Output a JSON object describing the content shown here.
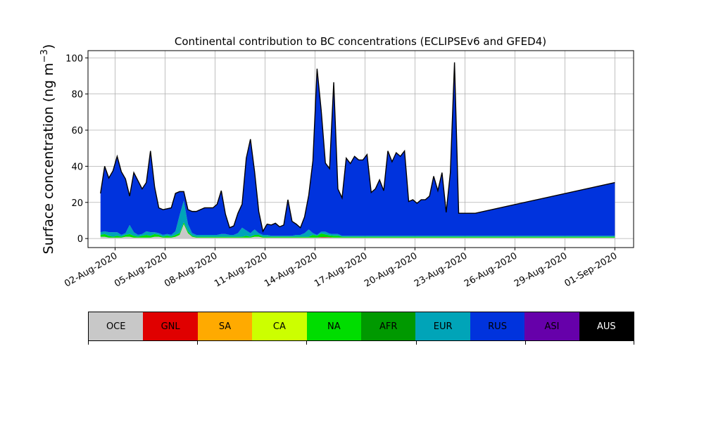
{
  "chart_data": {
    "type": "area",
    "title": "Continental contribution to BC concentrations (ECLIPSEv6 and GFED4)",
    "ylabel_main": "Surface concentration (ng m",
    "ylabel_exp": "−3",
    "ylabel_close": ")",
    "xlabel": "",
    "stacked": true,
    "grid": true,
    "ylim": [
      -5,
      104
    ],
    "xlim": [
      "2020-07-31T09:00",
      "2020-09-02T03:00"
    ],
    "yticks": [
      0,
      20,
      40,
      60,
      80,
      100
    ],
    "xticks": [
      "2020-08-02",
      "2020-08-05",
      "2020-08-08",
      "2020-08-11",
      "2020-08-14",
      "2020-08-17",
      "2020-08-20",
      "2020-08-23",
      "2020-08-26",
      "2020-08-29",
      "2020-09-01"
    ],
    "xtick_labels": [
      "02-Aug-2020",
      "05-Aug-2020",
      "08-Aug-2020",
      "11-Aug-2020",
      "14-Aug-2020",
      "17-Aug-2020",
      "20-Aug-2020",
      "23-Aug-2020",
      "26-Aug-2020",
      "29-Aug-2020",
      "01-Sep-2020"
    ],
    "x": [
      "2020-08-01T03:00",
      "2020-08-01T09:00",
      "2020-08-01T15:00",
      "2020-08-01T21:00",
      "2020-08-02T03:00",
      "2020-08-02T09:00",
      "2020-08-02T15:00",
      "2020-08-02T21:00",
      "2020-08-03T03:00",
      "2020-08-03T09:00",
      "2020-08-03T15:00",
      "2020-08-03T21:00",
      "2020-08-04T03:00",
      "2020-08-04T09:00",
      "2020-08-04T15:00",
      "2020-08-04T21:00",
      "2020-08-05T03:00",
      "2020-08-05T09:00",
      "2020-08-05T15:00",
      "2020-08-05T21:00",
      "2020-08-06T03:00",
      "2020-08-06T09:00",
      "2020-08-06T15:00",
      "2020-08-06T21:00",
      "2020-08-07T03:00",
      "2020-08-07T09:00",
      "2020-08-07T15:00",
      "2020-08-07T21:00",
      "2020-08-08T03:00",
      "2020-08-08T09:00",
      "2020-08-08T15:00",
      "2020-08-08T21:00",
      "2020-08-09T03:00",
      "2020-08-09T09:00",
      "2020-08-09T15:00",
      "2020-08-09T21:00",
      "2020-08-10T03:00",
      "2020-08-10T09:00",
      "2020-08-10T15:00",
      "2020-08-10T21:00",
      "2020-08-11T03:00",
      "2020-08-11T09:00",
      "2020-08-11T15:00",
      "2020-08-11T21:00",
      "2020-08-12T03:00",
      "2020-08-12T09:00",
      "2020-08-12T15:00",
      "2020-08-12T21:00",
      "2020-08-13T03:00",
      "2020-08-13T09:00",
      "2020-08-13T15:00",
      "2020-08-13T21:00",
      "2020-08-14T03:00",
      "2020-08-14T09:00",
      "2020-08-14T15:00",
      "2020-08-14T21:00",
      "2020-08-15T03:00",
      "2020-08-15T09:00",
      "2020-08-15T15:00",
      "2020-08-15T21:00",
      "2020-08-16T03:00",
      "2020-08-16T09:00",
      "2020-08-16T15:00",
      "2020-08-16T21:00",
      "2020-08-17T03:00",
      "2020-08-17T09:00",
      "2020-08-17T15:00",
      "2020-08-17T21:00",
      "2020-08-18T03:00",
      "2020-08-18T09:00",
      "2020-08-18T15:00",
      "2020-08-18T21:00",
      "2020-08-19T03:00",
      "2020-08-19T09:00",
      "2020-08-19T15:00",
      "2020-08-19T21:00",
      "2020-08-20T03:00",
      "2020-08-20T09:00",
      "2020-08-20T15:00",
      "2020-08-20T21:00",
      "2020-08-21T03:00",
      "2020-08-21T09:00",
      "2020-08-21T15:00",
      "2020-08-21T21:00",
      "2020-08-22T03:00",
      "2020-08-22T09:00",
      "2020-08-22T15:00",
      "2020-08-22T21:00",
      "2020-08-23T03:00",
      "2020-08-23T09:00",
      "2020-08-23T15:00",
      "2020-09-01T00:00"
    ],
    "series": [
      {
        "name": "OCE",
        "color": "#c8c8c8",
        "values": [
          1,
          1,
          0.5,
          0.5,
          0.5,
          0.5,
          1,
          1,
          0.5,
          0.5,
          0.5,
          0.5,
          0.5,
          1,
          1,
          0.5,
          0.5,
          0.5,
          1,
          2,
          8,
          3,
          1,
          0.5,
          0.5,
          0.5,
          0.5,
          0.5,
          0.5,
          0.5,
          0.5,
          0.5,
          0.5,
          0.5,
          0.5,
          0.5,
          0.5,
          1,
          1,
          0.5,
          0.5,
          0.5,
          0.5,
          0.5,
          0.5,
          0.5,
          0.5,
          0.5,
          0.5,
          0.5,
          0.5,
          0.5,
          0.5,
          0.5,
          0.5,
          0.5,
          0.5,
          0.5,
          0.5,
          0.5,
          0.5,
          0.5,
          0.5,
          0.5,
          0.5,
          0.5,
          0.5,
          0.5,
          0.5,
          0.5,
          0.5,
          0.5,
          0.5,
          0.5,
          0.5,
          0.5,
          0.5,
          0.5,
          0.5,
          0.5,
          0.5,
          0.5,
          0.5,
          0.5,
          0.5,
          0.5,
          0.5,
          0.5,
          0.5,
          0.5,
          0.5,
          0.5
        ]
      },
      {
        "name": "GNL",
        "color": "#e00000",
        "values": [
          0,
          0,
          0,
          0,
          0,
          0,
          0,
          0,
          0,
          0,
          0,
          0,
          0,
          0,
          0,
          0,
          0,
          0,
          0,
          0,
          0,
          0,
          0,
          0,
          0,
          0,
          0,
          0,
          0,
          0,
          0,
          0,
          0,
          0,
          0,
          0,
          0,
          0,
          0,
          0,
          0,
          0,
          0,
          0,
          0,
          0,
          0,
          0,
          0,
          0,
          0,
          0,
          0,
          0.3,
          0.3,
          0.2,
          0,
          0,
          0,
          0,
          0,
          0,
          0,
          0,
          0,
          0,
          0,
          0,
          0,
          0,
          0,
          0,
          0,
          0,
          0,
          0,
          0,
          0,
          0,
          0,
          0,
          0,
          0,
          0,
          0,
          0,
          0,
          0,
          0,
          0,
          0,
          0
        ]
      },
      {
        "name": "SA",
        "color": "#ffaa00",
        "values": [
          0,
          0,
          0,
          0,
          0,
          0,
          0,
          0,
          0,
          0,
          0,
          0,
          0,
          0,
          0,
          0,
          0,
          0,
          0,
          0,
          0,
          0,
          0,
          0,
          0,
          0,
          0,
          0,
          0,
          0,
          0,
          0,
          0,
          0,
          0,
          0,
          0,
          0,
          0,
          0,
          0,
          0,
          0,
          0,
          0,
          0,
          0,
          0,
          0,
          0,
          0,
          0,
          0,
          0,
          0,
          0,
          0,
          0,
          0,
          0,
          0,
          0,
          0,
          0,
          0,
          0,
          0,
          0,
          0,
          0,
          0,
          0,
          0,
          0,
          0,
          0,
          0,
          0,
          0,
          0,
          0,
          0,
          0,
          0,
          0,
          0,
          0,
          0,
          0,
          0,
          0,
          0
        ]
      },
      {
        "name": "CA",
        "color": "#ccff00",
        "values": [
          0,
          0,
          0,
          0,
          0,
          0,
          0,
          0,
          0,
          0,
          0,
          0,
          0,
          0,
          0,
          0,
          0,
          0,
          0,
          0,
          0,
          0,
          0,
          0,
          0,
          0,
          0,
          0,
          0,
          0,
          0,
          0,
          0,
          0,
          0,
          0,
          0,
          0,
          0,
          0,
          0,
          0,
          0,
          0,
          0,
          0,
          0,
          0,
          0,
          0,
          0,
          0,
          0,
          0,
          0,
          0,
          0,
          0,
          0,
          0,
          0,
          0,
          0,
          0,
          0,
          0,
          0,
          0,
          0,
          0,
          0,
          0,
          0,
          0,
          0,
          0,
          0,
          0,
          0,
          0,
          0,
          0,
          0,
          0,
          0,
          0,
          0,
          0,
          0,
          0,
          0,
          0
        ]
      },
      {
        "name": "NA",
        "color": "#00dd00",
        "values": [
          1,
          1.5,
          1,
          0.5,
          1,
          0.5,
          1,
          1.5,
          1,
          0.5,
          1,
          1.5,
          1,
          1.5,
          1,
          0.5,
          1,
          0.5,
          1,
          1,
          1,
          1,
          0.5,
          0.5,
          0.5,
          0.5,
          0.5,
          0.5,
          0.5,
          0.5,
          0.5,
          0.5,
          0.5,
          0.5,
          0.5,
          1,
          0.5,
          1,
          1,
          0.5,
          0.5,
          0.5,
          0.5,
          0.5,
          0.5,
          0.5,
          0.5,
          0.5,
          0.5,
          0.5,
          0.5,
          1.5,
          1,
          2,
          1.5,
          1,
          1,
          1,
          0.5,
          0.5,
          0.5,
          0.5,
          0.5,
          0.5,
          0.5,
          0.5,
          0.5,
          0.5,
          0.5,
          0.5,
          0.5,
          0.5,
          0.5,
          0.5,
          0.5,
          0.5,
          0.5,
          0.5,
          0.5,
          0.5,
          0.5,
          0.5,
          0.5,
          0.5,
          0.5,
          0.5,
          0.5,
          0.5,
          0.5,
          0.5,
          0.5,
          0.5
        ]
      },
      {
        "name": "AFR",
        "color": "#009900",
        "values": [
          0,
          0,
          0,
          0,
          0,
          0,
          0,
          0,
          0,
          0,
          0,
          0,
          0,
          0,
          0,
          0,
          0,
          0,
          0,
          0,
          0,
          0,
          0,
          0,
          0,
          0,
          0,
          0,
          0,
          0,
          0,
          0,
          0,
          0,
          0,
          0,
          0,
          0,
          0,
          0,
          0,
          0,
          0,
          0,
          0,
          0,
          0,
          0,
          0,
          0,
          0,
          0,
          0,
          0,
          0,
          0,
          0,
          0,
          0,
          0,
          0,
          0,
          0,
          0,
          0,
          0,
          0,
          0,
          0,
          0,
          0,
          0,
          0,
          0,
          0,
          0,
          0,
          0,
          0,
          0,
          0,
          0,
          0,
          0,
          0,
          0,
          0,
          0,
          0,
          0,
          0,
          0
        ]
      },
      {
        "name": "EUR",
        "color": "#00a4b8",
        "values": [
          1.5,
          1.5,
          2,
          2.5,
          2,
          1,
          1,
          5,
          2,
          1,
          1,
          2,
          2,
          1,
          1,
          1,
          1,
          1,
          2,
          10,
          12,
          4,
          1.5,
          1,
          1,
          1,
          1,
          1,
          1,
          1.5,
          1.5,
          1,
          1,
          2,
          5,
          3,
          2,
          3,
          1,
          1,
          1,
          0.5,
          0.5,
          0.5,
          0.5,
          0.5,
          0.5,
          1,
          1,
          2,
          4,
          1,
          0.5,
          1,
          1.5,
          1,
          1,
          1,
          0.5,
          0.5,
          0.5,
          0.5,
          0.5,
          0.5,
          0.5,
          0.5,
          0.5,
          0.5,
          0.5,
          0.5,
          0.5,
          0.5,
          0.5,
          0.5,
          0.5,
          0.5,
          0.5,
          0.5,
          0.5,
          0.5,
          0.5,
          0.5,
          0.5,
          0.5,
          0.5,
          0.5,
          0.5,
          0.5,
          0.5,
          0.5,
          0.5,
          0.5
        ]
      },
      {
        "name": "RUS",
        "color": "#0033dd",
        "values": [
          21.5,
          36,
          30,
          34,
          42,
          35,
          30,
          16,
          33,
          30,
          25,
          27,
          45,
          25,
          14,
          14,
          14,
          15,
          21,
          13,
          5,
          8,
          12,
          13,
          14,
          15,
          15,
          15,
          17,
          24,
          11,
          4,
          5,
          11,
          13,
          40,
          52,
          32,
          12,
          2,
          6,
          6,
          7,
          5,
          6,
          20,
          8,
          6,
          4,
          9,
          19,
          40,
          92,
          67,
          38,
          36,
          84,
          25,
          21,
          43,
          40,
          44,
          42,
          42,
          45,
          24,
          26,
          31,
          25,
          47,
          41,
          46,
          44,
          47,
          19,
          20,
          18,
          20,
          20,
          22,
          33,
          25,
          35,
          13,
          35,
          96,
          12.5,
          12.5,
          12.5,
          12.5,
          12.5,
          29.5
        ]
      },
      {
        "name": "ASI",
        "color": "#6600aa",
        "values": [
          0,
          0,
          0,
          0,
          0,
          0,
          0,
          0,
          0,
          0,
          0,
          0,
          0,
          0,
          0,
          0,
          0,
          0,
          0,
          0,
          0,
          0,
          0,
          0,
          0,
          0,
          0,
          0,
          0,
          0,
          0,
          0,
          0,
          0,
          0,
          0,
          0,
          0,
          0,
          0,
          0,
          0,
          0,
          0,
          0,
          0,
          0,
          0,
          0,
          0,
          0,
          0,
          0,
          0,
          0,
          0,
          0,
          0,
          0,
          0,
          0,
          0,
          0,
          0,
          0,
          0,
          0,
          0,
          0,
          0,
          0,
          0,
          0,
          0,
          0,
          0,
          0,
          0,
          0,
          0,
          0,
          0,
          0,
          0,
          0,
          0,
          0,
          0,
          0,
          0,
          0,
          0
        ]
      },
      {
        "name": "AUS",
        "color": "#000000",
        "values": [
          0,
          0,
          0,
          0,
          0,
          0,
          0,
          0,
          0,
          0,
          0,
          0,
          0,
          0,
          0,
          0,
          0,
          0,
          0,
          0,
          0,
          0,
          0,
          0,
          0,
          0,
          0,
          0,
          0,
          0,
          0,
          0,
          0,
          0,
          0,
          0,
          0,
          0,
          0,
          0,
          0,
          0,
          0,
          0,
          0,
          0,
          0,
          0,
          0,
          0,
          0,
          0,
          0,
          0,
          0,
          0,
          0,
          0,
          0,
          0,
          0,
          0,
          0,
          0,
          0,
          0,
          0,
          0,
          0,
          0,
          0,
          0,
          0,
          0,
          0,
          0,
          0,
          0,
          0,
          0,
          0,
          0,
          0,
          0,
          0,
          0,
          0,
          0,
          0,
          0,
          0,
          0
        ]
      }
    ],
    "total_line_color": "#000000",
    "legend_placement": "bottom"
  }
}
